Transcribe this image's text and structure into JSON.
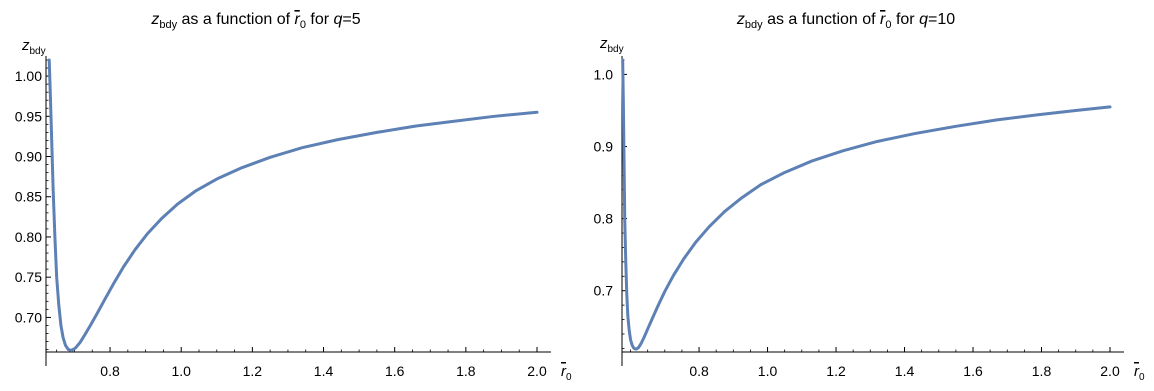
{
  "chart_data": [
    {
      "type": "line",
      "title": {
        "var": "z",
        "var_sub": "bdy",
        "middle": " as a function of ",
        "param": "r",
        "param_sub": "0",
        "for_text": " for ",
        "q_var": "q",
        "q_value": "=5"
      },
      "xlabel": {
        "var": "r",
        "sub": "0"
      },
      "ylabel": {
        "var": "z",
        "sub": "bdy"
      },
      "xlim": [
        0.62,
        2.0
      ],
      "ylim": [
        0.657,
        1.02
      ],
      "x_ticks": [
        0.8,
        1.0,
        1.2,
        1.4,
        1.6,
        1.8,
        2.0
      ],
      "x_tick_labels": [
        "0.8",
        "1.0",
        "1.2",
        "1.4",
        "1.6",
        "1.8",
        "2.0"
      ],
      "y_ticks": [
        0.7,
        0.75,
        0.8,
        0.85,
        0.9,
        0.95,
        1.0
      ],
      "y_tick_labels": [
        "0.70",
        "0.75",
        "0.80",
        "0.85",
        "0.90",
        "0.95",
        "1.00"
      ],
      "line_color": "#5e81b5",
      "series": [
        {
          "x": [
            0.629,
            0.632,
            0.636,
            0.64,
            0.645,
            0.65,
            0.656,
            0.662,
            0.668,
            0.675,
            0.683,
            0.692,
            0.703,
            0.716,
            0.73,
            0.746,
            0.765,
            0.786,
            0.81,
            0.838,
            0.87,
            0.905,
            0.945,
            0.99,
            1.04,
            1.1,
            1.17,
            1.25,
            1.34,
            1.44,
            1.55,
            1.66,
            1.77,
            1.88,
            2.0
          ],
          "y": [
            1.02,
            0.98,
            0.92,
            0.86,
            0.8,
            0.75,
            0.715,
            0.69,
            0.675,
            0.665,
            0.66,
            0.659,
            0.662,
            0.669,
            0.679,
            0.691,
            0.706,
            0.723,
            0.742,
            0.763,
            0.784,
            0.804,
            0.823,
            0.841,
            0.857,
            0.872,
            0.886,
            0.899,
            0.911,
            0.921,
            0.93,
            0.938,
            0.944,
            0.95,
            0.955
          ]
        }
      ]
    },
    {
      "type": "line",
      "title": {
        "var": "z",
        "var_sub": "bdy",
        "middle": " as a function of ",
        "param": "r",
        "param_sub": "0",
        "for_text": " for ",
        "q_var": "q",
        "q_value": "=10"
      },
      "xlabel": {
        "var": "r",
        "sub": "0"
      },
      "ylabel": {
        "var": "z",
        "sub": "bdy"
      },
      "xlim": [
        0.575,
        2.0
      ],
      "ylim": [
        0.615,
        1.02
      ],
      "x_ticks": [
        0.8,
        1.0,
        1.2,
        1.4,
        1.6,
        1.8,
        2.0
      ],
      "x_tick_labels": [
        "0.8",
        "1.0",
        "1.2",
        "1.4",
        "1.6",
        "1.8",
        "2.0"
      ],
      "y_ticks": [
        0.7,
        0.8,
        0.9,
        1.0
      ],
      "y_tick_labels": [
        "0.7",
        "0.8",
        "0.9",
        "1.0"
      ],
      "line_color": "#5e81b5",
      "series": [
        {
          "x": [
            0.577,
            0.579,
            0.581,
            0.583,
            0.586,
            0.589,
            0.592,
            0.596,
            0.6,
            0.605,
            0.61,
            0.616,
            0.623,
            0.631,
            0.64,
            0.651,
            0.664,
            0.68,
            0.7,
            0.725,
            0.755,
            0.79,
            0.83,
            0.875,
            0.925,
            0.98,
            1.05,
            1.13,
            1.22,
            1.32,
            1.43,
            1.55,
            1.67,
            1.79,
            1.9,
            2.0
          ],
          "y": [
            1.02,
            0.96,
            0.88,
            0.8,
            0.74,
            0.695,
            0.665,
            0.645,
            0.632,
            0.624,
            0.62,
            0.619,
            0.621,
            0.627,
            0.636,
            0.648,
            0.662,
            0.679,
            0.699,
            0.721,
            0.744,
            0.767,
            0.789,
            0.81,
            0.829,
            0.847,
            0.864,
            0.88,
            0.894,
            0.907,
            0.918,
            0.928,
            0.937,
            0.944,
            0.95,
            0.955
          ]
        }
      ]
    }
  ]
}
